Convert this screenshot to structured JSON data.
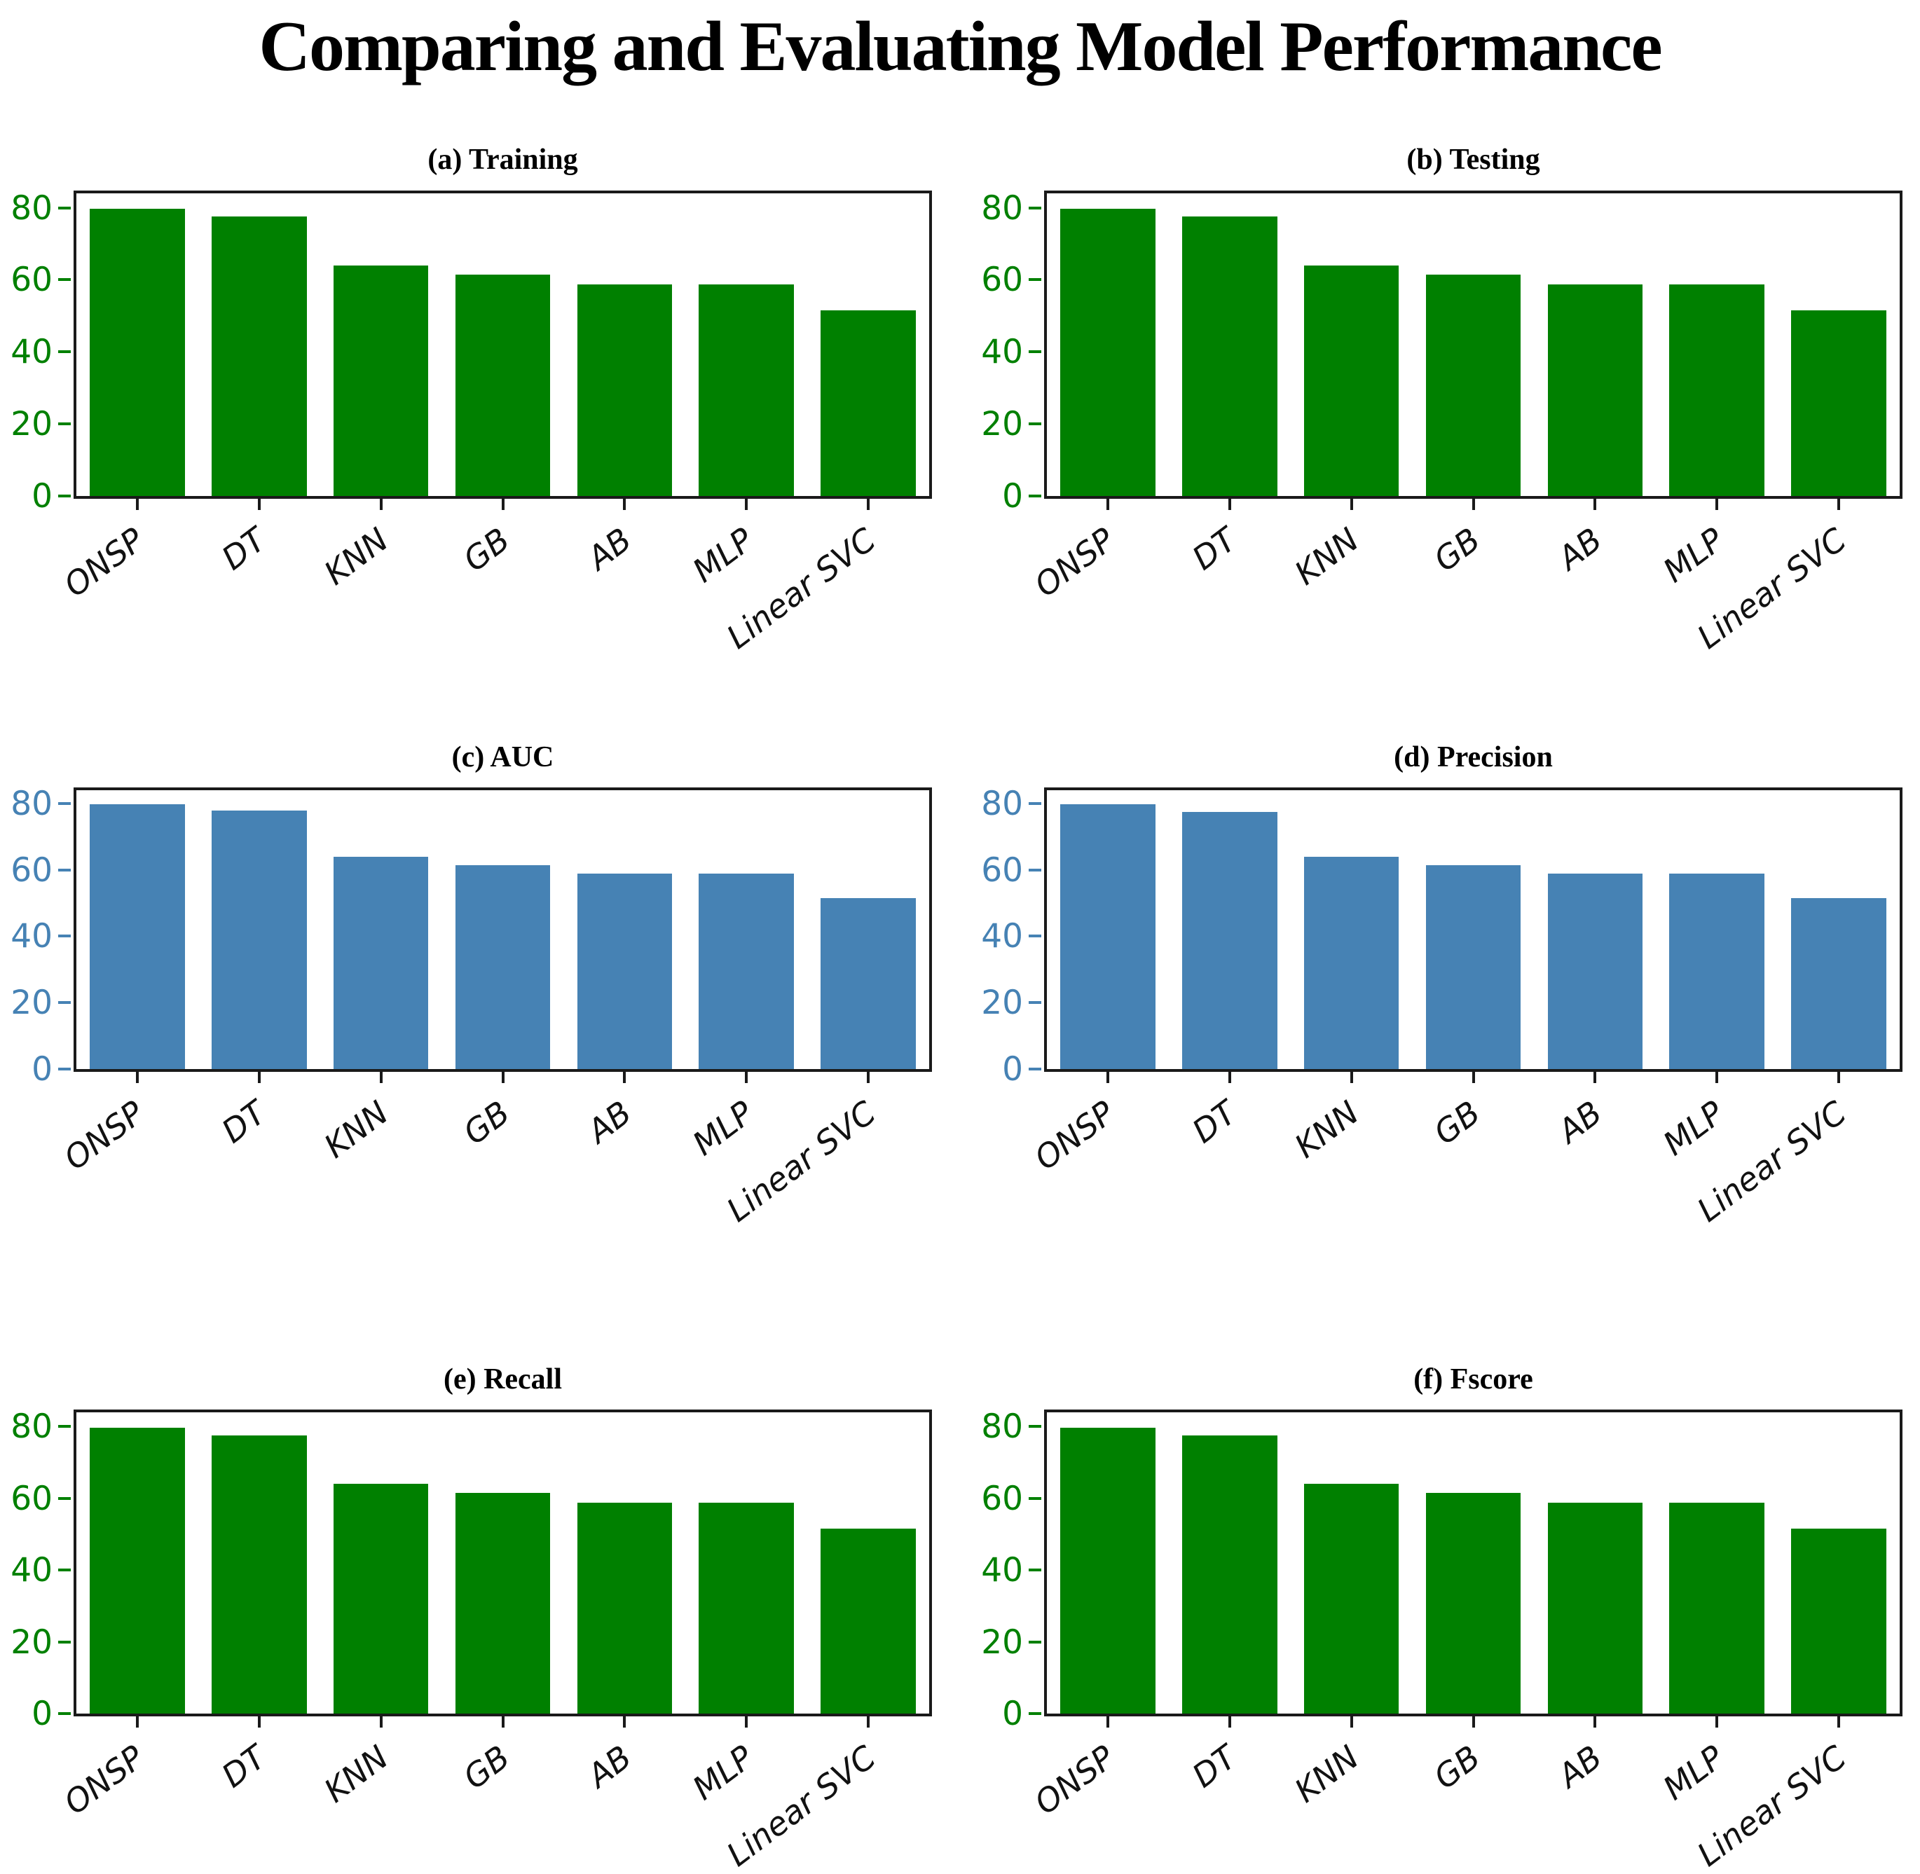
{
  "header": {
    "title": "Comparing and Evaluating Model Performance"
  },
  "palette": {
    "green": "#008000",
    "steel_blue": "#4682B4",
    "axis_frame": "#1a1a1a",
    "x_label_color": "#111111"
  },
  "chart_data": [
    {
      "type": "bar",
      "panel": "a",
      "title": "(a) Training",
      "categories": [
        "ONSP",
        "DT",
        "KNN",
        "GB",
        "AB",
        "MLP",
        "Linear SVC"
      ],
      "values": [
        79.8,
        77.5,
        64.0,
        61.5,
        58.8,
        58.8,
        51.5
      ],
      "bar_color": "#008000",
      "tick_color": "#008000",
      "y_ticks": [
        0,
        20,
        40,
        60,
        80
      ],
      "ylim": [
        0,
        84
      ],
      "grid": false,
      "legend": "none"
    },
    {
      "type": "bar",
      "panel": "b",
      "title": "(b) Testing",
      "categories": [
        "ONSP",
        "DT",
        "KNN",
        "GB",
        "AB",
        "MLP",
        "Linear SVC"
      ],
      "values": [
        79.8,
        77.5,
        64.0,
        61.5,
        58.8,
        58.8,
        51.5
      ],
      "bar_color": "#008000",
      "tick_color": "#008000",
      "y_ticks": [
        0,
        20,
        40,
        60,
        80
      ],
      "ylim": [
        0,
        84
      ],
      "grid": false,
      "legend": "none"
    },
    {
      "type": "bar",
      "panel": "c",
      "title": "(c) AUC",
      "categories": [
        "ONSP",
        "DT",
        "KNN",
        "GB",
        "AB",
        "MLP",
        "Linear SVC"
      ],
      "values": [
        79.8,
        77.8,
        64.0,
        61.5,
        58.8,
        58.8,
        51.5
      ],
      "bar_color": "#4682B4",
      "tick_color": "#4682B4",
      "y_ticks": [
        0,
        20,
        40,
        60,
        80
      ],
      "ylim": [
        0,
        84
      ],
      "grid": false,
      "legend": "none"
    },
    {
      "type": "bar",
      "panel": "d",
      "title": "(d) Precision",
      "categories": [
        "ONSP",
        "DT",
        "KNN",
        "GB",
        "AB",
        "MLP",
        "Linear SVC"
      ],
      "values": [
        79.8,
        77.5,
        64.0,
        61.5,
        58.8,
        58.8,
        51.5
      ],
      "bar_color": "#4682B4",
      "tick_color": "#4682B4",
      "y_ticks": [
        0,
        20,
        40,
        60,
        80
      ],
      "ylim": [
        0,
        84
      ],
      "grid": false,
      "legend": "none"
    },
    {
      "type": "bar",
      "panel": "e",
      "title": "(e) Recall",
      "categories": [
        "ONSP",
        "DT",
        "KNN",
        "GB",
        "AB",
        "MLP",
        "Linear SVC"
      ],
      "values": [
        79.8,
        77.5,
        64.0,
        61.5,
        58.8,
        58.8,
        51.5
      ],
      "bar_color": "#008000",
      "tick_color": "#008000",
      "y_ticks": [
        0,
        20,
        40,
        60,
        80
      ],
      "ylim": [
        0,
        84
      ],
      "grid": false,
      "legend": "none"
    },
    {
      "type": "bar",
      "panel": "f",
      "title": "(f) Fscore",
      "categories": [
        "ONSP",
        "DT",
        "KNN",
        "GB",
        "AB",
        "MLP",
        "Linear SVC"
      ],
      "values": [
        79.8,
        77.5,
        64.0,
        61.5,
        58.8,
        58.8,
        51.5
      ],
      "bar_color": "#008000",
      "tick_color": "#008000",
      "y_ticks": [
        0,
        20,
        40,
        60,
        80
      ],
      "ylim": [
        0,
        84
      ],
      "grid": false,
      "legend": "none"
    }
  ]
}
